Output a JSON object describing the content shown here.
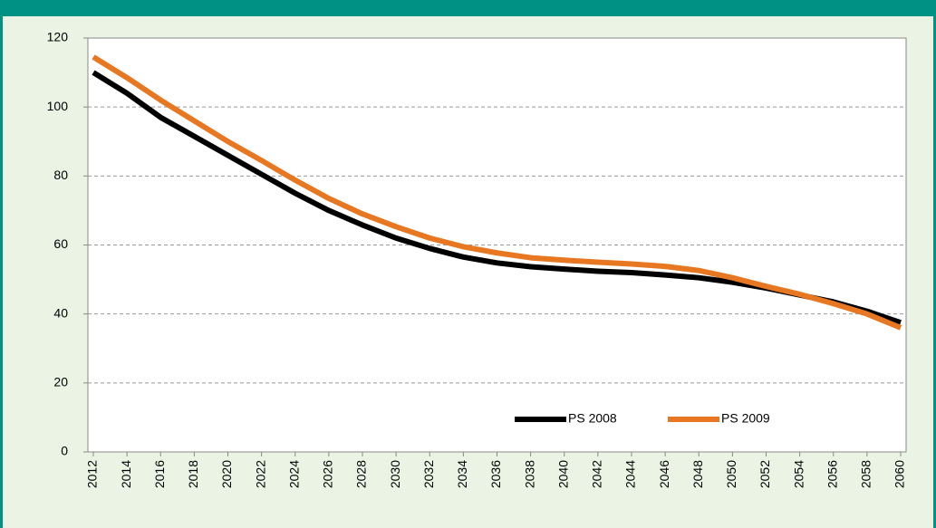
{
  "chart_data": {
    "type": "line",
    "x": [
      2012,
      2014,
      2016,
      2018,
      2020,
      2022,
      2024,
      2026,
      2028,
      2030,
      2032,
      2034,
      2036,
      2038,
      2040,
      2042,
      2044,
      2046,
      2048,
      2050,
      2052,
      2054,
      2056,
      2058,
      2060
    ],
    "series": [
      {
        "name": "PS 2008",
        "color": "#000000",
        "values": [
          110,
          104,
          97,
          91.5,
          86,
          80.5,
          75,
          70,
          65.8,
          62,
          59,
          56.5,
          54.8,
          53.7,
          53,
          52.4,
          52,
          51.3,
          50.5,
          49.2,
          47.5,
          45.5,
          43.5,
          40.8,
          37.5
        ]
      },
      {
        "name": "PS 2009",
        "color": "#e87722",
        "values": [
          114.5,
          108.5,
          102,
          96,
          90,
          84.5,
          78.8,
          73.5,
          69,
          65.3,
          62,
          59.5,
          57.7,
          56.3,
          55.6,
          55,
          54.5,
          53.8,
          52.6,
          50.5,
          48,
          45.7,
          43,
          40,
          36
        ]
      }
    ],
    "xlim": [
      2012,
      2060
    ],
    "xticks": [
      2012,
      2014,
      2016,
      2018,
      2020,
      2022,
      2024,
      2026,
      2028,
      2030,
      2032,
      2034,
      2036,
      2038,
      2040,
      2042,
      2044,
      2046,
      2048,
      2050,
      2052,
      2054,
      2056,
      2058,
      2060
    ],
    "ylim": [
      0,
      120
    ],
    "yticks": [
      0,
      20,
      40,
      60,
      80,
      100,
      120
    ],
    "grid": true,
    "legend": "bottom"
  }
}
